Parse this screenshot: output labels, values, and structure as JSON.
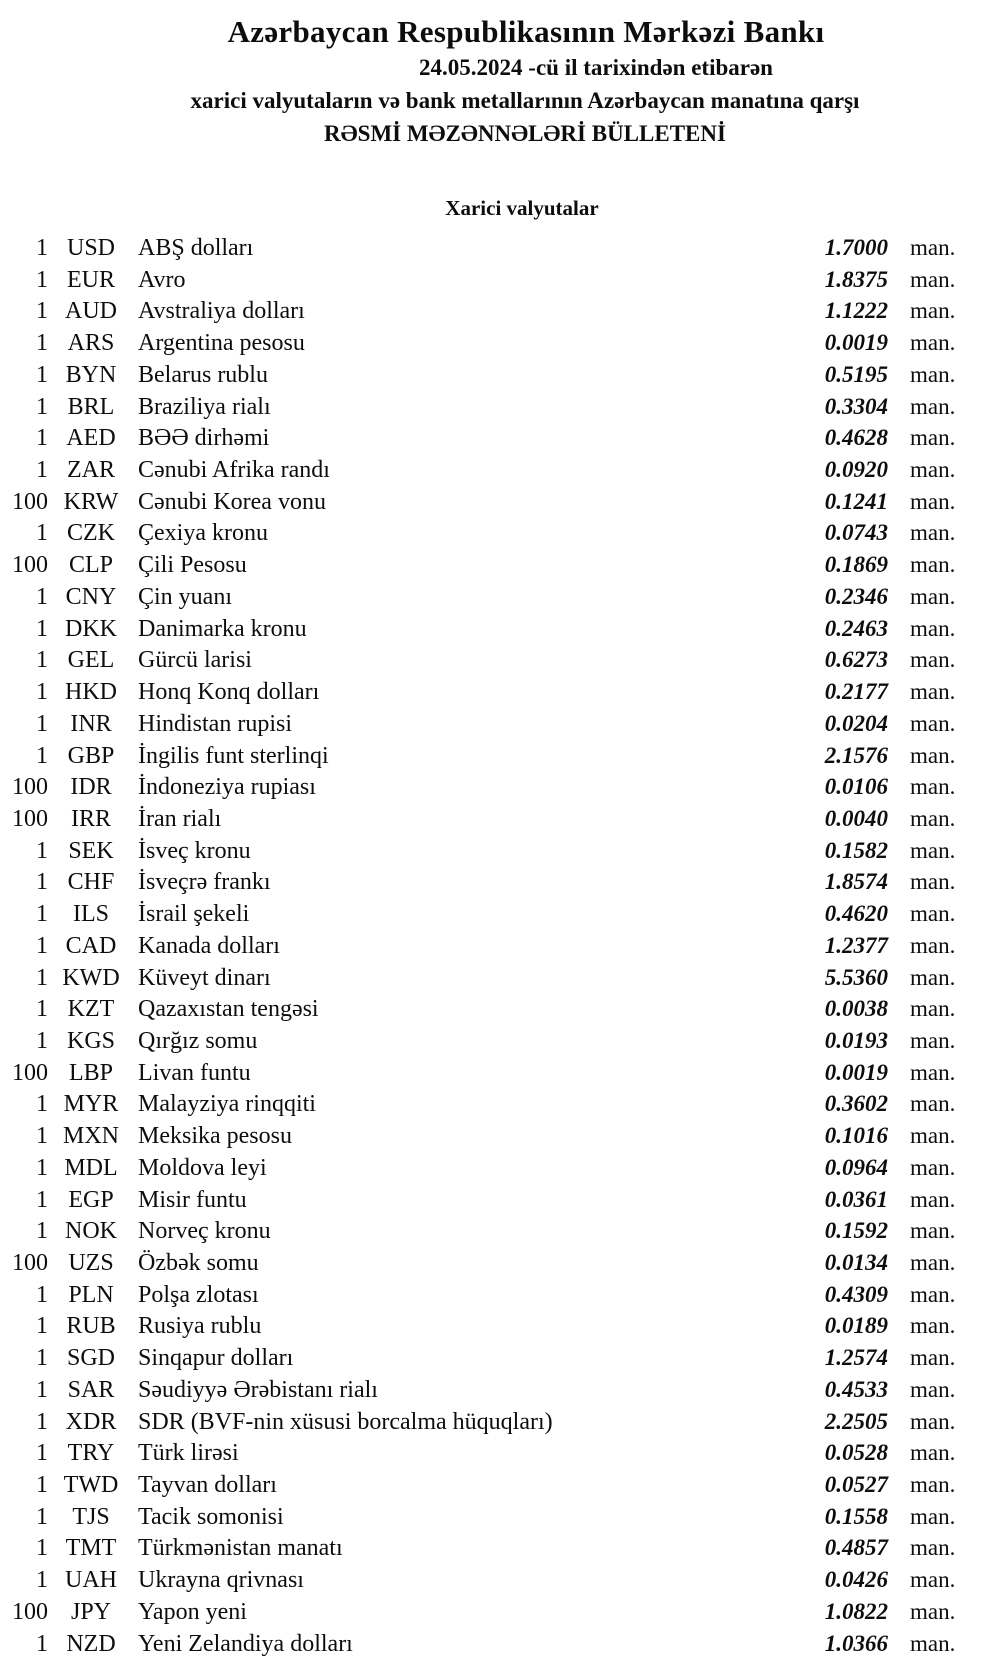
{
  "header": {
    "bank_title": "Azərbaycan Respublikasının Mərkəzi Bankı",
    "date_line": "24.05.2024 -cü il tarixindən etibarən",
    "subtitle_line1": "xarici valyutaların və bank metallarının Azərbaycan manatına qarşı",
    "subtitle_line2": "RƏSMİ MƏZƏNNƏLƏRİ BÜLLETENİ"
  },
  "section": {
    "title": "Xarici valyutalar"
  },
  "unit_label": "man.",
  "rates": [
    {
      "qty": "1",
      "code": "USD",
      "name": "ABŞ dolları",
      "rate": "1.7000"
    },
    {
      "qty": "1",
      "code": "EUR",
      "name": "Avro",
      "rate": "1.8375"
    },
    {
      "qty": "1",
      "code": "AUD",
      "name": "Avstraliya dolları",
      "rate": "1.1222"
    },
    {
      "qty": "1",
      "code": "ARS",
      "name": "Argentina pesosu",
      "rate": "0.0019"
    },
    {
      "qty": "1",
      "code": "BYN",
      "name": "Belarus rublu",
      "rate": "0.5195"
    },
    {
      "qty": "1",
      "code": "BRL",
      "name": "Braziliya rialı",
      "rate": "0.3304"
    },
    {
      "qty": "1",
      "code": "AED",
      "name": "BƏƏ dirhəmi",
      "rate": "0.4628"
    },
    {
      "qty": "1",
      "code": "ZAR",
      "name": "Cənubi Afrika randı",
      "rate": "0.0920"
    },
    {
      "qty": "100",
      "code": "KRW",
      "name": "Cənubi Korea vonu",
      "rate": "0.1241"
    },
    {
      "qty": "1",
      "code": "CZK",
      "name": "Çexiya kronu",
      "rate": "0.0743"
    },
    {
      "qty": "100",
      "code": "CLP",
      "name": "Çili Pesosu",
      "rate": "0.1869"
    },
    {
      "qty": "1",
      "code": "CNY",
      "name": "Çin yuanı",
      "rate": "0.2346"
    },
    {
      "qty": "1",
      "code": "DKK",
      "name": "Danimarka kronu",
      "rate": "0.2463"
    },
    {
      "qty": "1",
      "code": "GEL",
      "name": "Gürcü larisi",
      "rate": "0.6273"
    },
    {
      "qty": "1",
      "code": "HKD",
      "name": "Honq Konq dolları",
      "rate": "0.2177"
    },
    {
      "qty": "1",
      "code": "INR",
      "name": "Hindistan rupisi",
      "rate": "0.0204"
    },
    {
      "qty": "1",
      "code": "GBP",
      "name": "İngilis funt sterlinqi",
      "rate": "2.1576"
    },
    {
      "qty": "100",
      "code": "IDR",
      "name": "İndoneziya rupiası",
      "rate": "0.0106"
    },
    {
      "qty": "100",
      "code": "IRR",
      "name": "İran rialı",
      "rate": "0.0040"
    },
    {
      "qty": "1",
      "code": "SEK",
      "name": "İsveç kronu",
      "rate": "0.1582"
    },
    {
      "qty": "1",
      "code": "CHF",
      "name": "İsveçrə frankı",
      "rate": "1.8574"
    },
    {
      "qty": "1",
      "code": "ILS",
      "name": "İsrail şekeli",
      "rate": "0.4620"
    },
    {
      "qty": "1",
      "code": "CAD",
      "name": "Kanada dolları",
      "rate": "1.2377"
    },
    {
      "qty": "1",
      "code": "KWD",
      "name": "Küveyt dinarı",
      "rate": "5.5360"
    },
    {
      "qty": "1",
      "code": "KZT",
      "name": "Qazaxıstan tengəsi",
      "rate": "0.0038"
    },
    {
      "qty": "1",
      "code": "KGS",
      "name": "Qırğız somu",
      "rate": "0.0193"
    },
    {
      "qty": "100",
      "code": "LBP",
      "name": "Livan funtu",
      "rate": "0.0019"
    },
    {
      "qty": "1",
      "code": "MYR",
      "name": "Malayziya rinqqiti",
      "rate": "0.3602"
    },
    {
      "qty": "1",
      "code": "MXN",
      "name": "Meksika pesosu",
      "rate": "0.1016"
    },
    {
      "qty": "1",
      "code": "MDL",
      "name": "Moldova leyi",
      "rate": "0.0964"
    },
    {
      "qty": "1",
      "code": "EGP",
      "name": "Misir funtu",
      "rate": "0.0361"
    },
    {
      "qty": "1",
      "code": "NOK",
      "name": "Norveç kronu",
      "rate": "0.1592"
    },
    {
      "qty": "100",
      "code": "UZS",
      "name": "Özbək somu",
      "rate": "0.0134"
    },
    {
      "qty": "1",
      "code": "PLN",
      "name": "Polşa zlotası",
      "rate": "0.4309"
    },
    {
      "qty": "1",
      "code": "RUB",
      "name": "Rusiya rublu",
      "rate": "0.0189"
    },
    {
      "qty": "1",
      "code": "SGD",
      "name": "Sinqapur dolları",
      "rate": "1.2574"
    },
    {
      "qty": "1",
      "code": "SAR",
      "name": "Səudiyyə Ərəbistanı rialı",
      "rate": "0.4533"
    },
    {
      "qty": "1",
      "code": "XDR",
      "name": "SDR (BVF-nin xüsusi borcalma hüquqları)",
      "rate": "2.2505"
    },
    {
      "qty": "1",
      "code": "TRY",
      "name": "Türk lirəsi",
      "rate": "0.0528"
    },
    {
      "qty": "1",
      "code": "TWD",
      "name": "Tayvan dolları",
      "rate": "0.0527"
    },
    {
      "qty": "1",
      "code": "TJS",
      "name": "Tacik somonisi",
      "rate": "0.1558"
    },
    {
      "qty": "1",
      "code": "TMT",
      "name": "Türkmənistan manatı",
      "rate": "0.4857"
    },
    {
      "qty": "1",
      "code": "UAH",
      "name": "Ukrayna qrivnası",
      "rate": "0.0426"
    },
    {
      "qty": "100",
      "code": "JPY",
      "name": "Yapon yeni",
      "rate": "1.0822"
    },
    {
      "qty": "1",
      "code": "NZD",
      "name": "Yeni Zelandiya dolları",
      "rate": "1.0366"
    }
  ]
}
